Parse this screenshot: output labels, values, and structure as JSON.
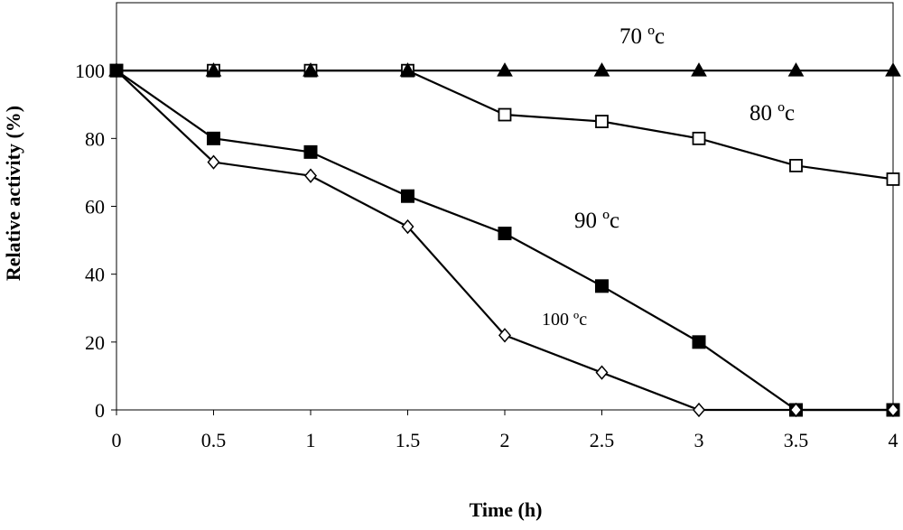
{
  "chart_data": {
    "type": "line",
    "title": "",
    "xlabel": "Time (h)",
    "ylabel": "Relative activity (%)",
    "xlim": [
      0,
      4
    ],
    "ylim": [
      0,
      120
    ],
    "x_ticks": [
      0,
      0.5,
      1,
      1.5,
      2,
      2.5,
      3,
      3.5,
      4
    ],
    "x_tick_labels": [
      "0",
      "0.5",
      "1",
      "1.5",
      "2",
      "2.5",
      "3",
      "3.5",
      "4"
    ],
    "y_ticks": [
      0,
      20,
      40,
      60,
      80,
      100
    ],
    "y_tick_labels": [
      "0",
      "20",
      "40",
      "60",
      "80",
      "100"
    ],
    "grid": false,
    "legend": "none (series labelled directly on the plot)",
    "series": [
      {
        "name": "70 ºc",
        "marker": "filled-triangle",
        "x": [
          0,
          0.5,
          1,
          1.5,
          2,
          2.5,
          3,
          3.5,
          4
        ],
        "y": [
          100,
          100,
          100,
          100,
          100,
          100,
          100,
          100,
          100
        ]
      },
      {
        "name": "80 ºc",
        "marker": "open-square",
        "x": [
          0,
          0.5,
          1,
          1.5,
          2,
          2.5,
          3,
          3.5,
          4
        ],
        "y": [
          100,
          100,
          100,
          100,
          87,
          85,
          80,
          72,
          68
        ]
      },
      {
        "name": "90 ºc",
        "marker": "filled-square",
        "x": [
          0,
          0.5,
          1,
          1.5,
          2,
          2.5,
          3,
          3.5,
          4
        ],
        "y": [
          100,
          80,
          76,
          63,
          52,
          36.5,
          20,
          0,
          0
        ]
      },
      {
        "name": "100 ºc",
        "marker": "open-diamond",
        "x": [
          0,
          0.5,
          1,
          1.5,
          2,
          2.5,
          3,
          3.5,
          4
        ],
        "y": [
          100,
          73,
          69,
          54,
          22,
          11,
          0,
          0,
          0
        ]
      }
    ],
    "colors": {
      "line": "#000000",
      "marker_fill": "#000000",
      "marker_open": "#ffffff"
    }
  }
}
